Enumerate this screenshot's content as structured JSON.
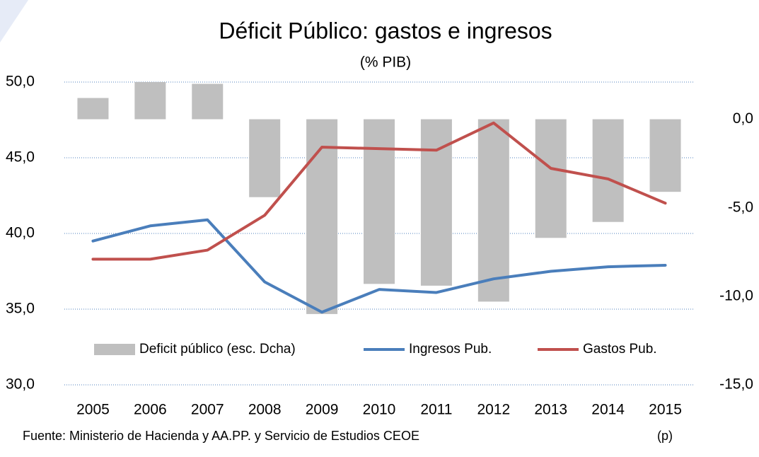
{
  "chart_data": {
    "type": "bar",
    "title": "Déficit Público: gastos e ingresos",
    "subtitle": "(% PIB)",
    "categories": [
      "2005",
      "2006",
      "2007",
      "2008",
      "2009",
      "2010",
      "2011",
      "2012",
      "2013",
      "2014",
      "2015"
    ],
    "series": [
      {
        "name": "Deficit público (esc. Dcha)",
        "type": "bar",
        "axis": "y2",
        "color": "#bfbfbf",
        "values": [
          1.2,
          2.2,
          2.0,
          -4.4,
          -11.0,
          -9.3,
          -9.4,
          -10.3,
          -6.7,
          -5.8,
          -4.1
        ]
      },
      {
        "name": "Ingresos Pub.",
        "type": "line",
        "color": "#4a7ebb",
        "values": [
          39.5,
          40.5,
          40.9,
          36.8,
          34.8,
          36.3,
          36.1,
          37.0,
          37.5,
          37.8,
          37.9
        ]
      },
      {
        "name": "Gastos Pub.",
        "type": "line",
        "color": "#c0504d",
        "values": [
          38.3,
          38.3,
          38.9,
          41.2,
          45.7,
          45.6,
          45.5,
          47.3,
          44.3,
          43.6,
          42.0
        ]
      }
    ],
    "ylim": [
      30,
      50
    ],
    "yticks": [
      {
        "value": 30,
        "label": "30,0"
      },
      {
        "value": 35,
        "label": "35,0"
      },
      {
        "value": 40,
        "label": "40,0"
      },
      {
        "value": 45,
        "label": "45,0"
      },
      {
        "value": 50,
        "label": "50,0"
      }
    ],
    "y2lim": [
      -15,
      2.1
    ],
    "y2ticks": [
      {
        "value": -15,
        "label": "-15,0"
      },
      {
        "value": -10,
        "label": "-10,0"
      },
      {
        "value": -5,
        "label": "-5,0"
      },
      {
        "value": 0,
        "label": "0,0"
      }
    ],
    "grid": true,
    "legend": "bottom",
    "source": "Fuente: Ministerio de Hacienda y AA.PP. y Servicio de Estudios CEOE",
    "note": "(p)"
  }
}
